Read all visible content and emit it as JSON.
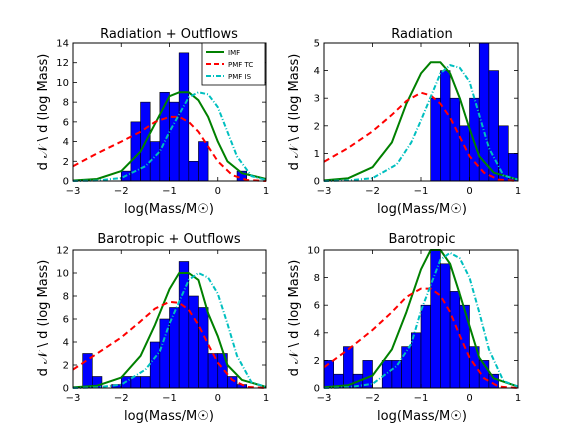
{
  "figure": {
    "xlabel": "log(Mass/M☉)",
    "ylabel": "d 𝒩 \\ d (log Mass)"
  },
  "legend": {
    "entries": [
      {
        "label": "IMF",
        "color": "#008000",
        "style": "solid"
      },
      {
        "label": "PMF TC",
        "color": "#ff0000",
        "style": "dashed"
      },
      {
        "label": "PMF IS",
        "color": "#00bfbf",
        "style": "dashdot"
      }
    ]
  },
  "colors": {
    "bars": "#0000ff",
    "bar_edge": "#000000",
    "imf": "#008000",
    "pmf_tc": "#ff0000",
    "pmf_is": "#00bfbf"
  },
  "chart_data": [
    {
      "type": "bar",
      "title": "Radiation + Outflows",
      "xlabel": "log(Mass/M☉)",
      "ylabel": "d 𝒩 \\ d (log Mass)",
      "xlim": [
        -3,
        1
      ],
      "ylim": [
        0,
        14
      ],
      "xticks": [
        -3,
        -2,
        -1,
        0,
        1
      ],
      "yticks": [
        0,
        2,
        4,
        6,
        8,
        10,
        12,
        14
      ],
      "bin_width": 0.2,
      "bars": [
        {
          "x0": -2.0,
          "value": 1
        },
        {
          "x0": -1.8,
          "value": 6
        },
        {
          "x0": -1.6,
          "value": 8
        },
        {
          "x0": -1.4,
          "value": 4
        },
        {
          "x0": -1.2,
          "value": 9
        },
        {
          "x0": -1.0,
          "value": 8
        },
        {
          "x0": -0.8,
          "value": 13
        },
        {
          "x0": -0.6,
          "value": 2
        },
        {
          "x0": -0.4,
          "value": 4
        },
        {
          "x0": 0.4,
          "value": 1
        }
      ],
      "series": [
        {
          "name": "IMF",
          "x": [
            -3,
            -2.5,
            -2,
            -1.6,
            -1.3,
            -1,
            -0.8,
            -0.6,
            -0.4,
            -0.2,
            0,
            0.2,
            0.5,
            1
          ],
          "y": [
            0.05,
            0.2,
            1,
            3,
            5.8,
            8.6,
            9,
            9,
            8.2,
            6.5,
            4,
            2,
            0.8,
            0.2
          ]
        },
        {
          "name": "PMF TC",
          "x": [
            -3,
            -2.5,
            -2,
            -1.6,
            -1.3,
            -1,
            -0.8,
            -0.6,
            -0.4,
            -0.2,
            0,
            0.3,
            0.6,
            1
          ],
          "y": [
            1.5,
            2.8,
            4,
            5,
            6,
            6.5,
            6.5,
            6,
            5,
            3.5,
            2,
            0.6,
            0.1,
            0
          ]
        },
        {
          "name": "PMF IS",
          "x": [
            -3,
            -2.5,
            -2,
            -1.5,
            -1.2,
            -1,
            -0.6,
            -0.4,
            -0.2,
            0,
            0.2,
            0.4,
            0.7,
            1
          ],
          "y": [
            0,
            0.05,
            0.3,
            1.5,
            3,
            5,
            8.5,
            9,
            8.8,
            7.5,
            5,
            2.5,
            0.5,
            0.1
          ]
        }
      ]
    },
    {
      "type": "bar",
      "title": "Radiation",
      "xlabel": "log(Mass/M☉)",
      "ylabel": "d 𝒩 \\ d (log Mass)",
      "xlim": [
        -3,
        1
      ],
      "ylim": [
        0,
        5
      ],
      "xticks": [
        -3,
        -2,
        -1,
        0,
        1
      ],
      "yticks": [
        0,
        1,
        2,
        3,
        4,
        5
      ],
      "bin_width": 0.2,
      "bars": [
        {
          "x0": -0.8,
          "value": 3
        },
        {
          "x0": -0.6,
          "value": 4
        },
        {
          "x0": -0.4,
          "value": 3
        },
        {
          "x0": -0.2,
          "value": 2
        },
        {
          "x0": 0.0,
          "value": 3
        },
        {
          "x0": 0.2,
          "value": 5
        },
        {
          "x0": 0.4,
          "value": 4
        },
        {
          "x0": 0.6,
          "value": 2
        },
        {
          "x0": 0.8,
          "value": 1
        }
      ],
      "series": [
        {
          "name": "IMF",
          "x": [
            -3,
            -2.5,
            -2,
            -1.6,
            -1.3,
            -1,
            -0.8,
            -0.6,
            -0.4,
            -0.2,
            0,
            0.2,
            0.5,
            1
          ],
          "y": [
            0.02,
            0.1,
            0.5,
            1.4,
            2.8,
            3.9,
            4.3,
            4.3,
            3.9,
            3,
            1.9,
            0.9,
            0.3,
            0.05
          ]
        },
        {
          "name": "PMF TC",
          "x": [
            -3,
            -2.5,
            -2,
            -1.6,
            -1.3,
            -1,
            -0.8,
            -0.6,
            -0.4,
            -0.2,
            0,
            0.3,
            0.6,
            1
          ],
          "y": [
            0.7,
            1.2,
            1.8,
            2.4,
            2.9,
            3.2,
            3.1,
            2.8,
            2.3,
            1.6,
            0.9,
            0.3,
            0.05,
            0
          ]
        },
        {
          "name": "PMF IS",
          "x": [
            -3,
            -2.5,
            -2,
            -1.5,
            -1.2,
            -1,
            -0.6,
            -0.4,
            -0.2,
            0,
            0.2,
            0.4,
            0.7,
            1
          ],
          "y": [
            0,
            0.02,
            0.1,
            0.6,
            1.4,
            2.2,
            3.9,
            4.2,
            4.1,
            3.6,
            2.4,
            1.2,
            0.2,
            0.05
          ]
        }
      ]
    },
    {
      "type": "bar",
      "title": "Barotropic + Outflows",
      "xlabel": "log(Mass/M☉)",
      "ylabel": "d 𝒩 \\ d (log Mass)",
      "xlim": [
        -3,
        1
      ],
      "ylim": [
        0,
        12
      ],
      "xticks": [
        -3,
        -2,
        -1,
        0,
        1
      ],
      "yticks": [
        0,
        2,
        4,
        6,
        8,
        10,
        12
      ],
      "bin_width": 0.2,
      "bars": [
        {
          "x0": -2.8,
          "value": 3
        },
        {
          "x0": -2.6,
          "value": 1
        },
        {
          "x0": -2.2,
          "value": 0.3
        },
        {
          "x0": -2.0,
          "value": 1
        },
        {
          "x0": -1.8,
          "value": 1
        },
        {
          "x0": -1.6,
          "value": 1
        },
        {
          "x0": -1.4,
          "value": 4
        },
        {
          "x0": -1.2,
          "value": 6
        },
        {
          "x0": -1.0,
          "value": 7
        },
        {
          "x0": -0.8,
          "value": 11
        },
        {
          "x0": -0.6,
          "value": 8
        },
        {
          "x0": -0.4,
          "value": 7
        },
        {
          "x0": -0.2,
          "value": 3
        },
        {
          "x0": 0.0,
          "value": 3
        },
        {
          "x0": 0.2,
          "value": 1
        },
        {
          "x0": 0.4,
          "value": 0.3
        }
      ],
      "series": [
        {
          "name": "IMF",
          "x": [
            -3,
            -2.5,
            -2,
            -1.6,
            -1.3,
            -1,
            -0.8,
            -0.6,
            -0.4,
            -0.2,
            0,
            0.2,
            0.5,
            1
          ],
          "y": [
            0.05,
            0.2,
            0.9,
            2.8,
            5.5,
            8.6,
            10,
            10,
            9.4,
            6.5,
            4.5,
            2,
            0.7,
            0.1
          ]
        },
        {
          "name": "PMF TC",
          "x": [
            -3,
            -2.5,
            -2,
            -1.6,
            -1.3,
            -1,
            -0.8,
            -0.6,
            -0.4,
            -0.2,
            0,
            0.3,
            0.6,
            1
          ],
          "y": [
            1.6,
            3,
            4.4,
            5.8,
            6.9,
            7.5,
            7.4,
            6.8,
            5.5,
            3.8,
            2.2,
            0.7,
            0.1,
            0
          ]
        },
        {
          "name": "PMF IS",
          "x": [
            -3,
            -2.5,
            -2,
            -1.5,
            -1.2,
            -1,
            -0.6,
            -0.4,
            -0.2,
            0,
            0.2,
            0.4,
            0.7,
            1
          ],
          "y": [
            0,
            0.05,
            0.3,
            1.6,
            3.2,
            5.6,
            9.4,
            10,
            9.6,
            8.2,
            5.6,
            2.8,
            0.5,
            0.1
          ]
        }
      ]
    },
    {
      "type": "bar",
      "title": "Barotropic",
      "xlabel": "log(Mass/M☉)",
      "ylabel": "d 𝒩 \\ d (log Mass)",
      "xlim": [
        -3,
        1
      ],
      "ylim": [
        0,
        10
      ],
      "xticks": [
        -3,
        -2,
        -1,
        0,
        1
      ],
      "yticks": [
        0,
        2,
        4,
        6,
        8,
        10
      ],
      "bin_width": 0.2,
      "bars": [
        {
          "x0": -3.0,
          "value": 2
        },
        {
          "x0": -2.8,
          "value": 1
        },
        {
          "x0": -2.6,
          "value": 3
        },
        {
          "x0": -2.4,
          "value": 1
        },
        {
          "x0": -2.2,
          "value": 2
        },
        {
          "x0": -1.8,
          "value": 2
        },
        {
          "x0": -1.6,
          "value": 2
        },
        {
          "x0": -1.4,
          "value": 3
        },
        {
          "x0": -1.2,
          "value": 4
        },
        {
          "x0": -1.0,
          "value": 6
        },
        {
          "x0": -0.8,
          "value": 10
        },
        {
          "x0": -0.6,
          "value": 9
        },
        {
          "x0": -0.4,
          "value": 7
        },
        {
          "x0": -0.2,
          "value": 6
        },
        {
          "x0": 0.0,
          "value": 3
        },
        {
          "x0": 0.2,
          "value": 2
        },
        {
          "x0": 0.4,
          "value": 1
        }
      ],
      "series": [
        {
          "name": "IMF",
          "x": [
            -3,
            -2.5,
            -2,
            -1.6,
            -1.3,
            -1,
            -0.8,
            -0.6,
            -0.4,
            -0.2,
            0,
            0.2,
            0.5,
            1
          ],
          "y": [
            0.05,
            0.2,
            0.9,
            2.8,
            5.5,
            8.6,
            10,
            10,
            9,
            6.8,
            4.5,
            2.2,
            0.7,
            0.1
          ]
        },
        {
          "name": "PMF TC",
          "x": [
            -3,
            -2.5,
            -2,
            -1.6,
            -1.3,
            -1,
            -0.8,
            -0.6,
            -0.4,
            -0.2,
            0,
            0.3,
            0.6,
            1
          ],
          "y": [
            1.5,
            2.8,
            4.2,
            5.5,
            6.6,
            7.2,
            7.2,
            6.7,
            5.5,
            3.8,
            2.2,
            0.7,
            0.1,
            0
          ]
        },
        {
          "name": "PMF IS",
          "x": [
            -3,
            -2.5,
            -2,
            -1.5,
            -1.2,
            -1,
            -0.6,
            -0.4,
            -0.2,
            0,
            0.2,
            0.4,
            0.7,
            1
          ],
          "y": [
            0,
            0.05,
            0.3,
            1.6,
            3.2,
            5.6,
            9.3,
            9.8,
            9.4,
            8,
            5.5,
            2.8,
            0.5,
            0.1
          ]
        }
      ]
    }
  ]
}
